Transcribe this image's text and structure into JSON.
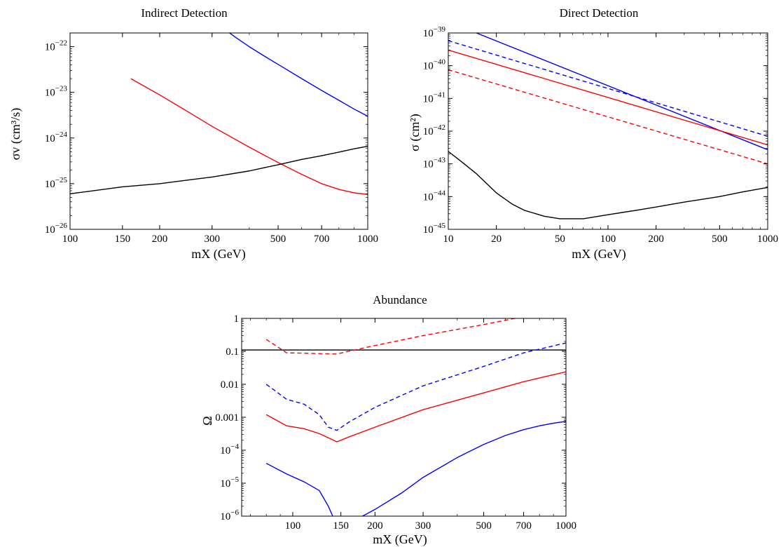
{
  "chart_data": [
    {
      "type": "line",
      "title": "Indirect Detection",
      "xlabel": "mX (GeV)",
      "ylabel": "σv (cm³/s)",
      "xscale": "log",
      "yscale": "log",
      "xlim": [
        100,
        1000
      ],
      "ylim": [
        1e-26,
        2e-22
      ],
      "grid": false,
      "x_ticks": [
        {
          "v": 100,
          "label": "100"
        },
        {
          "v": 150,
          "label": "150"
        },
        {
          "v": 200,
          "label": "200"
        },
        {
          "v": 300,
          "label": "300"
        },
        {
          "v": 500,
          "label": "500"
        },
        {
          "v": 700,
          "label": "700"
        },
        {
          "v": 1000,
          "label": "1000"
        }
      ],
      "y_ticks": [
        {
          "v": 1e-26,
          "base": "10",
          "exp": "−26"
        },
        {
          "v": 1e-25,
          "base": "10",
          "exp": "−25"
        },
        {
          "v": 1e-24,
          "base": "10",
          "exp": "−24"
        },
        {
          "v": 1e-23,
          "base": "10",
          "exp": "−23"
        },
        {
          "v": 1e-22,
          "base": "10",
          "exp": "−22"
        }
      ],
      "series": [
        {
          "color": "#0000ff",
          "dash": "solid",
          "x": [
            340,
            360,
            400,
            450,
            500,
            600,
            700,
            800,
            900,
            1000
          ],
          "y": [
            2.1e-22,
            1.6e-22,
            1e-22,
            6.2e-23,
            4.1e-23,
            2e-23,
            1.1e-23,
            6.7e-24,
            4.3e-24,
            3e-24
          ]
        },
        {
          "color": "#ff0000",
          "dash": "solid",
          "x": [
            160,
            200,
            250,
            300,
            400,
            500,
            600,
            700,
            800,
            900,
            1000
          ],
          "y": [
            2e-23,
            8.8e-24,
            3.7e-24,
            1.8e-24,
            6.3e-25,
            2.9e-25,
            1.6e-25,
            1e-25,
            7.5e-26,
            6.3e-26,
            5.8e-26
          ]
        },
        {
          "color": "#000000",
          "dash": "solid",
          "x": [
            100,
            150,
            200,
            300,
            400,
            500,
            600,
            700,
            800,
            900,
            1000
          ],
          "y": [
            6e-26,
            8.5e-26,
            1e-25,
            1.4e-25,
            1.9e-25,
            2.6e-25,
            3.4e-25,
            4.1e-25,
            4.9e-25,
            5.8e-25,
            6.6e-25
          ]
        }
      ]
    },
    {
      "type": "line",
      "title": "Direct Detection",
      "xlabel": "mX (GeV)",
      "ylabel": "σ (cm²)",
      "xscale": "log",
      "yscale": "log",
      "xlim": [
        10,
        1000
      ],
      "ylim": [
        1e-45,
        1e-39
      ],
      "grid": false,
      "x_ticks": [
        {
          "v": 10,
          "label": "10"
        },
        {
          "v": 20,
          "label": "20"
        },
        {
          "v": 50,
          "label": "50"
        },
        {
          "v": 100,
          "label": "100"
        },
        {
          "v": 200,
          "label": "200"
        },
        {
          "v": 500,
          "label": "500"
        },
        {
          "v": 1000,
          "label": "1000"
        }
      ],
      "y_ticks": [
        {
          "v": 1e-45,
          "base": "10",
          "exp": "−45"
        },
        {
          "v": 1e-44,
          "base": "10",
          "exp": "−44"
        },
        {
          "v": 1e-43,
          "base": "10",
          "exp": "−43"
        },
        {
          "v": 1e-42,
          "base": "10",
          "exp": "−42"
        },
        {
          "v": 1e-41,
          "base": "10",
          "exp": "−41"
        },
        {
          "v": 1e-40,
          "base": "10",
          "exp": "−40"
        },
        {
          "v": 1e-39,
          "base": "10",
          "exp": "−39"
        }
      ],
      "series": [
        {
          "color": "#0000ff",
          "dash": "solid",
          "x": [
            15,
            1000
          ],
          "y": [
            1e-39,
            2.7e-43
          ]
        },
        {
          "color": "#0000ff",
          "dash": "dashed",
          "x": [
            10,
            1000
          ],
          "y": [
            5.8e-40,
            7e-43
          ]
        },
        {
          "color": "#ff0000",
          "dash": "solid",
          "x": [
            10,
            1000
          ],
          "y": [
            3e-40,
            3.8e-43
          ]
        },
        {
          "color": "#ff0000",
          "dash": "dashed",
          "x": [
            10,
            1000
          ],
          "y": [
            7.5e-41,
            1e-43
          ]
        },
        {
          "color": "#000000",
          "dash": "solid",
          "x": [
            10,
            12,
            15,
            20,
            25,
            30,
            40,
            50,
            60,
            70,
            100,
            150,
            200,
            300,
            500,
            700,
            1000
          ],
          "y": [
            2.4e-43,
            1.2e-43,
            5e-44,
            1.3e-44,
            6e-45,
            3.8e-45,
            2.5e-45,
            2.1e-45,
            2.1e-45,
            2.1e-45,
            2.8e-45,
            3.8e-45,
            4.8e-45,
            6.8e-45,
            1e-44,
            1.4e-44,
            1.9e-44
          ]
        }
      ]
    },
    {
      "type": "line",
      "title": "Abundance",
      "xlabel": "mX (GeV)",
      "ylabel": "Ω",
      "xscale": "log",
      "yscale": "log",
      "xlim": [
        65,
        1000
      ],
      "ylim": [
        1e-06,
        1
      ],
      "grid": false,
      "x_ticks": [
        {
          "v": 100,
          "label": "100"
        },
        {
          "v": 150,
          "label": "150"
        },
        {
          "v": 200,
          "label": "200"
        },
        {
          "v": 300,
          "label": "300"
        },
        {
          "v": 500,
          "label": "500"
        },
        {
          "v": 700,
          "label": "700"
        },
        {
          "v": 1000,
          "label": "1000"
        }
      ],
      "y_ticks": [
        {
          "v": 1e-06,
          "base": "10",
          "exp": "−6"
        },
        {
          "v": 1e-05,
          "base": "10",
          "exp": "−5"
        },
        {
          "v": 0.0001,
          "base": "10",
          "exp": "−4"
        },
        {
          "v": 0.001,
          "label": "0.001"
        },
        {
          "v": 0.01,
          "label": "0.01"
        },
        {
          "v": 0.1,
          "label": "0.1"
        },
        {
          "v": 1,
          "label": "1"
        }
      ],
      "series": [
        {
          "color": "#000000",
          "dash": "solid",
          "x": [
            65,
            1000
          ],
          "y": [
            0.11,
            0.11
          ]
        },
        {
          "color": "#ff0000",
          "dash": "dashed",
          "x": [
            80,
            95,
            110,
            125,
            145,
            160,
            200,
            300,
            500,
            650
          ],
          "y": [
            0.23,
            0.09,
            0.088,
            0.085,
            0.083,
            0.1,
            0.15,
            0.3,
            0.65,
            1.0
          ]
        },
        {
          "color": "#0000ff",
          "dash": "dashed",
          "x": [
            80,
            95,
            110,
            125,
            135,
            145,
            160,
            200,
            300,
            500,
            700,
            1000
          ],
          "y": [
            0.01,
            0.0035,
            0.0025,
            0.0012,
            0.0005,
            0.0004,
            0.0007,
            0.002,
            0.009,
            0.035,
            0.09,
            0.18
          ]
        },
        {
          "color": "#ff0000",
          "dash": "solid",
          "x": [
            80,
            95,
            110,
            125,
            145,
            160,
            200,
            300,
            500,
            700,
            1000
          ],
          "y": [
            0.0012,
            0.00055,
            0.00045,
            0.00032,
            0.00018,
            0.00025,
            0.0005,
            0.0017,
            0.0055,
            0.012,
            0.024
          ]
        },
        {
          "color": "#0000ff",
          "dash": "solid",
          "x": [
            80,
            95,
            110,
            125,
            135,
            140
          ],
          "y": [
            4e-05,
            1.9e-05,
            1.1e-05,
            6e-06,
            2e-06,
            1e-06
          ]
        },
        {
          "color": "#0000ff",
          "dash": "solid",
          "x": [
            180,
            200,
            250,
            300,
            400,
            500,
            600,
            700,
            800,
            900,
            1000
          ],
          "y": [
            1e-06,
            1.6e-06,
            5e-06,
            1.5e-05,
            6e-05,
            0.00015,
            0.00028,
            0.00042,
            0.00055,
            0.00066,
            0.00075
          ]
        }
      ]
    }
  ]
}
